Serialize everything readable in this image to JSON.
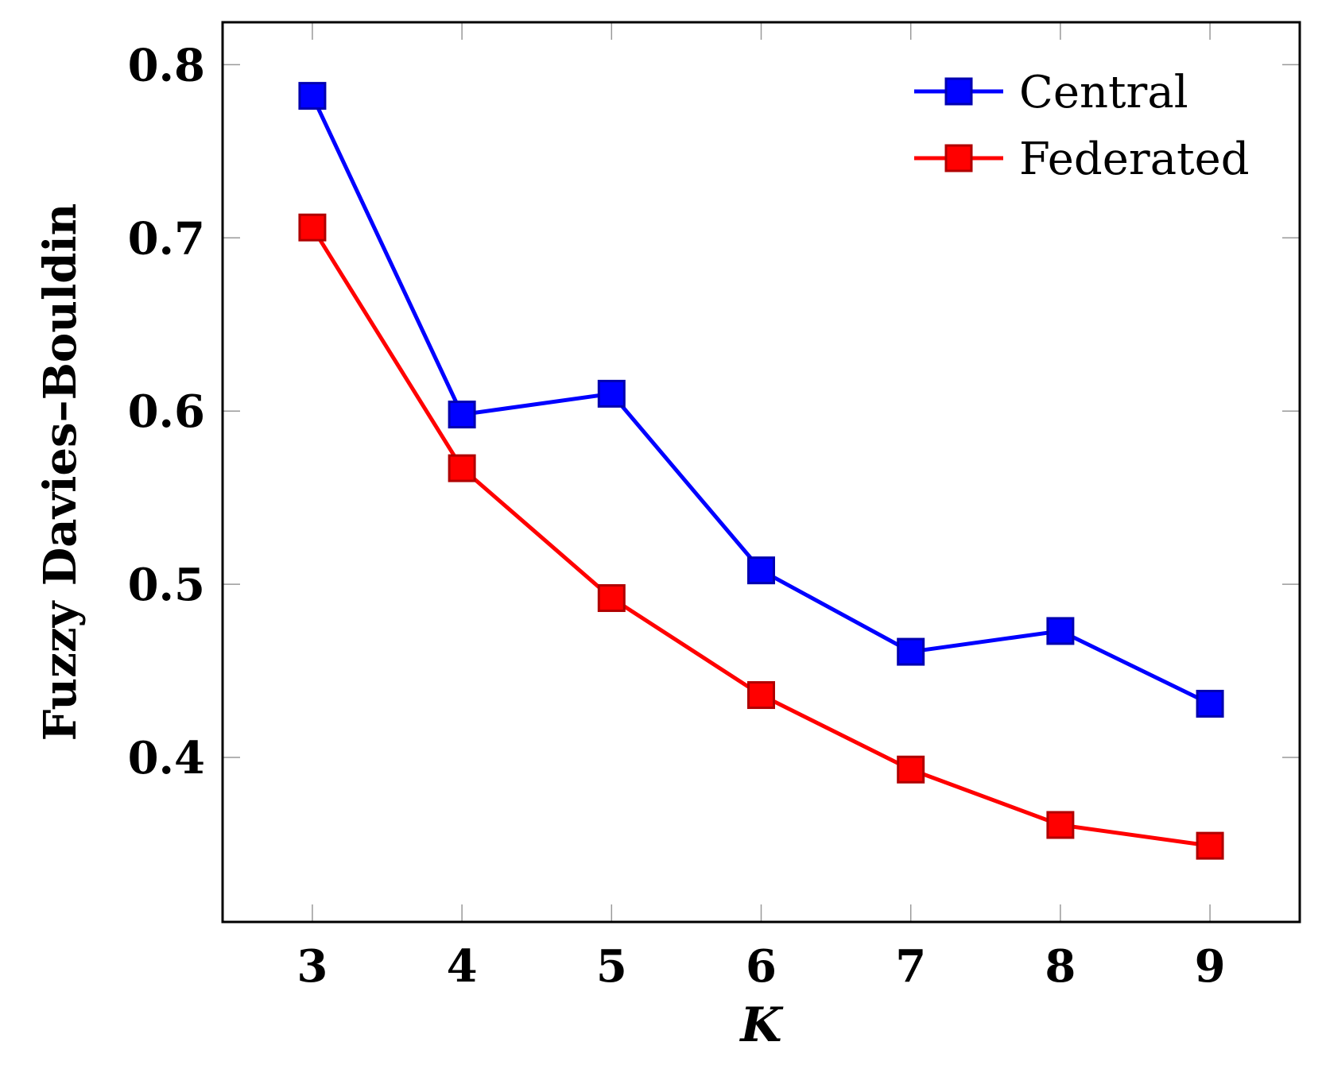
{
  "chart_data": {
    "type": "line",
    "title": "",
    "xlabel": "K",
    "ylabel": "Fuzzy Davies–Bouldin",
    "x": [
      3,
      4,
      5,
      6,
      7,
      8,
      9
    ],
    "x_tick_labels": [
      "3",
      "4",
      "5",
      "6",
      "7",
      "8",
      "9"
    ],
    "xlim": [
      2.4,
      9.6
    ],
    "ylim": [
      0.305,
      0.8245
    ],
    "y_ticks": [
      0.4,
      0.5,
      0.6,
      0.7,
      0.8
    ],
    "y_tick_labels": [
      "0.4",
      "0.5",
      "0.6",
      "0.7",
      "0.8"
    ],
    "legend_position": "top-right",
    "series": [
      {
        "name": "Central",
        "color": "#0000ff",
        "marker": "square",
        "values": [
          0.782,
          0.598,
          0.61,
          0.508,
          0.461,
          0.473,
          0.431
        ]
      },
      {
        "name": "Federated",
        "color": "#ff0000",
        "marker": "square",
        "values": [
          0.706,
          0.567,
          0.492,
          0.436,
          0.393,
          0.361,
          0.349
        ]
      }
    ]
  }
}
